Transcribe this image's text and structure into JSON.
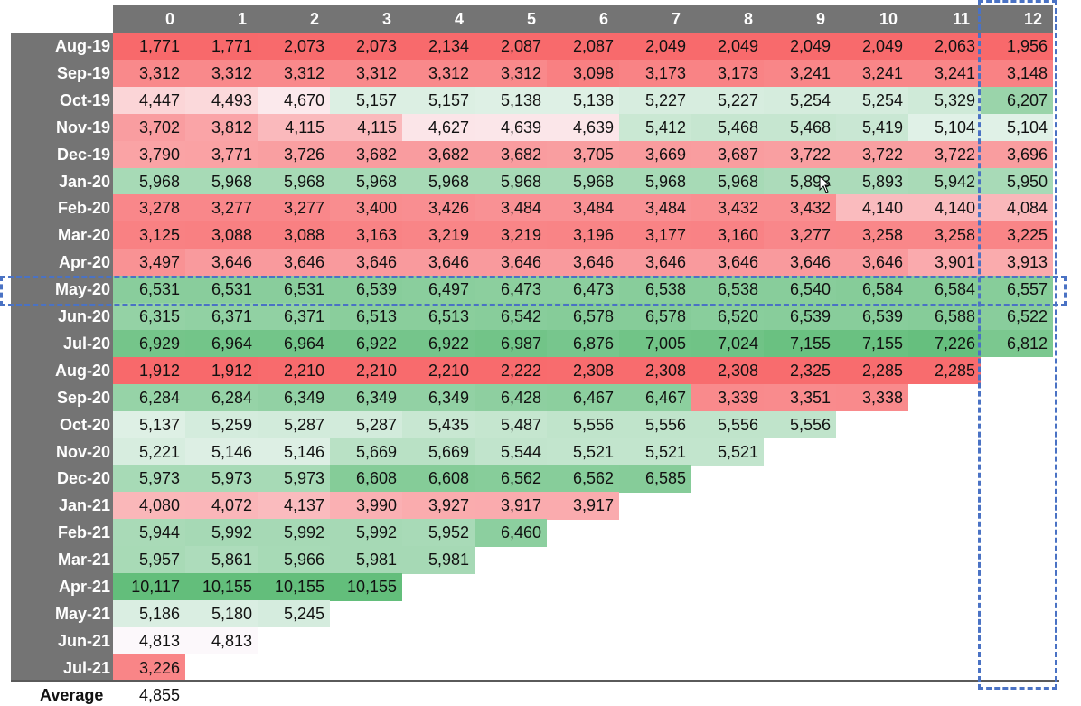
{
  "chart_data": {
    "type": "heatmap",
    "columns": [
      "0",
      "1",
      "2",
      "3",
      "4",
      "5",
      "6",
      "7",
      "8",
      "9",
      "10",
      "11",
      "12"
    ],
    "rows": [
      {
        "label": "Aug-19",
        "values": [
          "1,771",
          "1,771",
          "2,073",
          "2,073",
          "2,134",
          "2,087",
          "2,087",
          "2,049",
          "2,049",
          "2,049",
          "2,049",
          "2,063",
          "1,956"
        ]
      },
      {
        "label": "Sep-19",
        "values": [
          "3,312",
          "3,312",
          "3,312",
          "3,312",
          "3,312",
          "3,312",
          "3,098",
          "3,173",
          "3,173",
          "3,241",
          "3,241",
          "3,241",
          "3,148"
        ]
      },
      {
        "label": "Oct-19",
        "values": [
          "4,447",
          "4,493",
          "4,670",
          "5,157",
          "5,157",
          "5,138",
          "5,138",
          "5,227",
          "5,227",
          "5,254",
          "5,254",
          "5,329",
          "6,207"
        ]
      },
      {
        "label": "Nov-19",
        "values": [
          "3,702",
          "3,812",
          "4,115",
          "4,115",
          "4,627",
          "4,639",
          "4,639",
          "5,412",
          "5,468",
          "5,468",
          "5,419",
          "5,104",
          "5,104"
        ]
      },
      {
        "label": "Dec-19",
        "values": [
          "3,790",
          "3,771",
          "3,726",
          "3,682",
          "3,682",
          "3,682",
          "3,705",
          "3,669",
          "3,687",
          "3,722",
          "3,722",
          "3,722",
          "3,696"
        ]
      },
      {
        "label": "Jan-20",
        "values": [
          "5,968",
          "5,968",
          "5,968",
          "5,968",
          "5,968",
          "5,968",
          "5,968",
          "5,968",
          "5,968",
          "5,893",
          "5,893",
          "5,942",
          "5,950"
        ]
      },
      {
        "label": "Feb-20",
        "values": [
          "3,278",
          "3,277",
          "3,277",
          "3,400",
          "3,426",
          "3,484",
          "3,484",
          "3,484",
          "3,432",
          "3,432",
          "4,140",
          "4,140",
          "4,084"
        ]
      },
      {
        "label": "Mar-20",
        "values": [
          "3,125",
          "3,088",
          "3,088",
          "3,163",
          "3,219",
          "3,219",
          "3,196",
          "3,177",
          "3,160",
          "3,277",
          "3,258",
          "3,258",
          "3,225"
        ]
      },
      {
        "label": "Apr-20",
        "values": [
          "3,497",
          "3,646",
          "3,646",
          "3,646",
          "3,646",
          "3,646",
          "3,646",
          "3,646",
          "3,646",
          "3,646",
          "3,646",
          "3,901",
          "3,913"
        ]
      },
      {
        "label": "May-20",
        "values": [
          "6,531",
          "6,531",
          "6,531",
          "6,539",
          "6,497",
          "6,473",
          "6,473",
          "6,538",
          "6,538",
          "6,540",
          "6,584",
          "6,584",
          "6,557"
        ]
      },
      {
        "label": "Jun-20",
        "values": [
          "6,315",
          "6,371",
          "6,371",
          "6,513",
          "6,513",
          "6,542",
          "6,578",
          "6,578",
          "6,520",
          "6,539",
          "6,539",
          "6,588",
          "6,522"
        ]
      },
      {
        "label": "Jul-20",
        "values": [
          "6,929",
          "6,964",
          "6,964",
          "6,922",
          "6,922",
          "6,987",
          "6,876",
          "7,005",
          "7,024",
          "7,155",
          "7,155",
          "7,226",
          "6,812"
        ]
      },
      {
        "label": "Aug-20",
        "values": [
          "1,912",
          "1,912",
          "2,210",
          "2,210",
          "2,210",
          "2,222",
          "2,308",
          "2,308",
          "2,308",
          "2,325",
          "2,285",
          "2,285"
        ]
      },
      {
        "label": "Sep-20",
        "values": [
          "6,284",
          "6,284",
          "6,349",
          "6,349",
          "6,349",
          "6,428",
          "6,467",
          "6,467",
          "3,339",
          "3,351",
          "3,338"
        ]
      },
      {
        "label": "Oct-20",
        "values": [
          "5,137",
          "5,259",
          "5,287",
          "5,287",
          "5,435",
          "5,487",
          "5,556",
          "5,556",
          "5,556",
          "5,556"
        ]
      },
      {
        "label": "Nov-20",
        "values": [
          "5,221",
          "5,146",
          "5,146",
          "5,669",
          "5,669",
          "5,544",
          "5,521",
          "5,521",
          "5,521"
        ]
      },
      {
        "label": "Dec-20",
        "values": [
          "5,973",
          "5,973",
          "5,973",
          "6,608",
          "6,608",
          "6,562",
          "6,562",
          "6,585"
        ]
      },
      {
        "label": "Jan-21",
        "values": [
          "4,080",
          "4,072",
          "4,137",
          "3,990",
          "3,927",
          "3,917",
          "3,917"
        ]
      },
      {
        "label": "Feb-21",
        "values": [
          "5,944",
          "5,992",
          "5,992",
          "5,992",
          "5,952",
          "6,460"
        ]
      },
      {
        "label": "Mar-21",
        "values": [
          "5,957",
          "5,861",
          "5,966",
          "5,981",
          "5,981"
        ]
      },
      {
        "label": "Apr-21",
        "values": [
          "10,117",
          "10,155",
          "10,155",
          "10,155"
        ]
      },
      {
        "label": "May-21",
        "values": [
          "5,186",
          "5,180",
          "5,245"
        ]
      },
      {
        "label": "Jun-21",
        "values": [
          "4,813",
          "4,813"
        ]
      },
      {
        "label": "Jul-21",
        "values": [
          "3,226"
        ]
      }
    ],
    "average": {
      "label": "Average",
      "value": "4,855"
    },
    "color_scale": {
      "low": "#f8696b",
      "mid": "#fcfcff",
      "high": "#63be7b",
      "mid_value": 4855
    },
    "highlighted_column": "12",
    "highlighted_row": "May-20",
    "highlight_color": "#4a72c4"
  }
}
